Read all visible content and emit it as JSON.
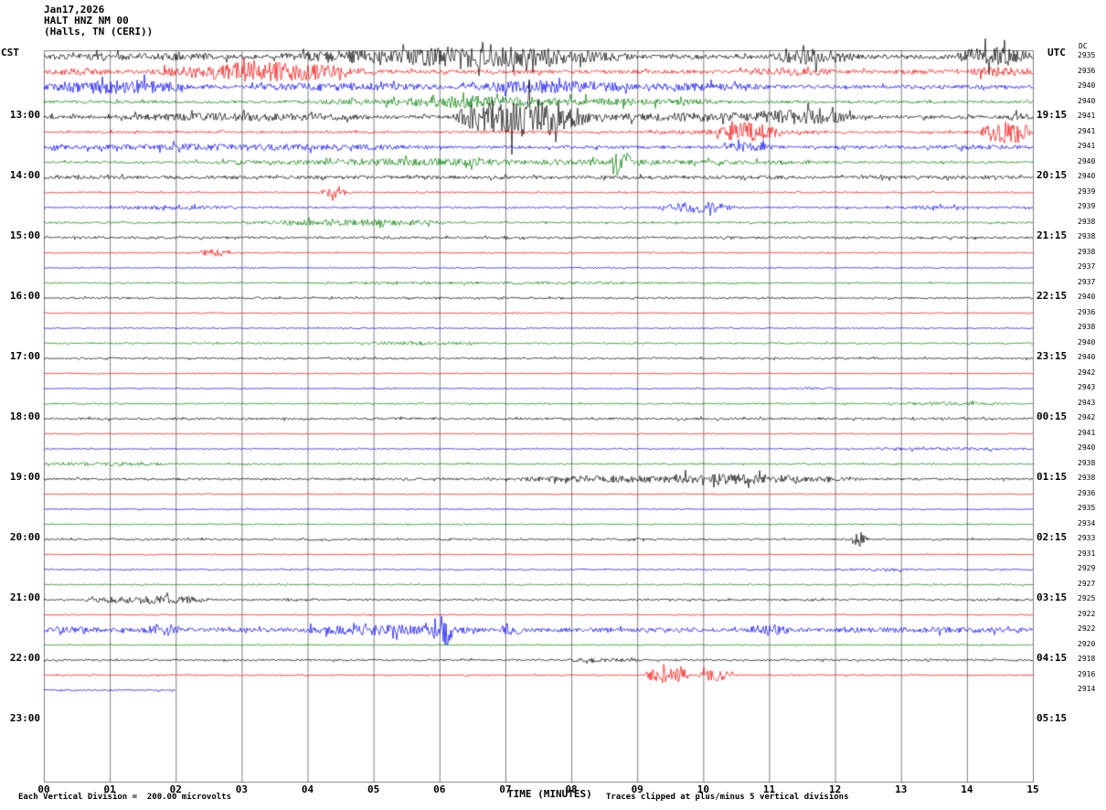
{
  "title": {
    "date": "Jan17,2026",
    "station": "HALT HNZ NM 00",
    "location": "(Halls, TN (CERI))"
  },
  "axes": {
    "left_label": "CST",
    "right_label": "UTC",
    "dc_label": "DC",
    "x_label": "TIME (MINUTES)",
    "x_ticks": [
      "00",
      "01",
      "02",
      "03",
      "04",
      "05",
      "06",
      "07",
      "08",
      "09",
      "10",
      "11",
      "12",
      "13",
      "14",
      "15"
    ],
    "footer_left": "Each Vertical Division =  200.00 microvolts",
    "footer_right": "Traces clipped at plus/minus 5 vertical divisions"
  },
  "chart_data": {
    "type": "line",
    "subtype": "helicorder-seismogram",
    "x_range": [
      0,
      15
    ],
    "minutes_per_line": 15,
    "microvolts_per_division": 200.0,
    "clip_divisions": 5,
    "colors": [
      "#000000",
      "#ff0000",
      "#0000ff",
      "#008000"
    ],
    "rows": [
      {
        "trace": true,
        "cst": "",
        "utc": "",
        "dc": 2935,
        "base": 2.5,
        "events": [
          [
            0,
            3,
            1.5
          ],
          [
            3.5,
            9,
            6
          ],
          [
            5.5,
            8,
            3
          ],
          [
            11,
            12.3,
            7
          ],
          [
            13.8,
            15,
            8
          ]
        ]
      },
      {
        "trace": true,
        "cst": "",
        "utc": "",
        "dc": 2936,
        "base": 2.0,
        "events": [
          [
            0,
            1,
            2
          ],
          [
            1.5,
            5,
            5
          ],
          [
            2.2,
            4.6,
            4
          ],
          [
            10.5,
            12,
            2.5
          ],
          [
            14,
            15,
            3.5
          ]
        ]
      },
      {
        "trace": true,
        "cst": "",
        "utc": "",
        "dc": 2940,
        "base": 2.0,
        "events": [
          [
            0,
            2.2,
            6
          ],
          [
            3,
            6,
            2.5
          ],
          [
            6.3,
            9,
            5
          ],
          [
            9,
            11,
            2.5
          ]
        ]
      },
      {
        "trace": true,
        "cst": "",
        "utc": "",
        "dc": 2940,
        "base": 1.5,
        "events": [
          [
            4,
            10.5,
            3
          ],
          [
            5.5,
            7.5,
            2.5
          ]
        ]
      },
      {
        "trace": true,
        "cst": "13:00",
        "utc": "19:15",
        "dc": 2941,
        "base": 2.0,
        "events": [
          [
            1,
            5,
            2.5
          ],
          [
            6.2,
            8.3,
            20
          ],
          [
            8.3,
            12.3,
            3
          ],
          [
            10.8,
            12.3,
            4
          ],
          [
            14.6,
            15,
            2.5
          ]
        ]
      },
      {
        "trace": true,
        "cst": "",
        "utc": "",
        "dc": 2941,
        "base": 1.2,
        "events": [
          [
            9,
            12,
            1.5
          ],
          [
            10.2,
            11.2,
            8
          ],
          [
            14.2,
            15,
            12
          ]
        ]
      },
      {
        "trace": true,
        "cst": "",
        "utc": "",
        "dc": 2941,
        "base": 1.5,
        "events": [
          [
            0,
            6,
            2
          ],
          [
            10.3,
            11.1,
            4
          ],
          [
            13,
            15,
            1
          ]
        ]
      },
      {
        "trace": true,
        "cst": "",
        "utc": "",
        "dc": 2940,
        "base": 1.2,
        "events": [
          [
            2,
            12,
            2
          ],
          [
            4.5,
            7,
            1.2
          ],
          [
            8.6,
            8.9,
            13
          ]
        ]
      },
      {
        "trace": true,
        "cst": "14:00",
        "utc": "20:15",
        "dc": 2940,
        "base": 1.8,
        "events": []
      },
      {
        "trace": true,
        "cst": "",
        "utc": "",
        "dc": 2939,
        "base": 0.8,
        "events": [
          [
            4.15,
            4.6,
            6
          ]
        ]
      },
      {
        "trace": true,
        "cst": "",
        "utc": "",
        "dc": 2939,
        "base": 1.0,
        "events": [
          [
            1,
            3,
            1.3
          ],
          [
            9.3,
            10.5,
            5
          ],
          [
            13,
            14,
            1
          ]
        ]
      },
      {
        "trace": true,
        "cst": "",
        "utc": "",
        "dc": 2938,
        "base": 1.0,
        "events": [
          [
            3.2,
            6.2,
            2.5
          ]
        ]
      },
      {
        "trace": true,
        "cst": "15:00",
        "utc": "21:15",
        "dc": 2938,
        "base": 1.2,
        "events": []
      },
      {
        "trace": true,
        "cst": "",
        "utc": "",
        "dc": 2938,
        "base": 0.7,
        "events": [
          [
            2.35,
            2.85,
            3.5
          ]
        ]
      },
      {
        "trace": true,
        "cst": "",
        "utc": "",
        "dc": 2937,
        "base": 0.6,
        "events": []
      },
      {
        "trace": true,
        "cst": "",
        "utc": "",
        "dc": 2937,
        "base": 0.8,
        "events": [
          [
            4,
            10,
            0.7
          ]
        ]
      },
      {
        "trace": true,
        "cst": "16:00",
        "utc": "22:15",
        "dc": 2940,
        "base": 1.0,
        "events": []
      },
      {
        "trace": true,
        "cst": "",
        "utc": "",
        "dc": 2936,
        "base": 0.6,
        "events": []
      },
      {
        "trace": true,
        "cst": "",
        "utc": "",
        "dc": 2938,
        "base": 0.6,
        "events": []
      },
      {
        "trace": true,
        "cst": "",
        "utc": "",
        "dc": 2940,
        "base": 0.8,
        "events": [
          [
            4.8,
            6.6,
            1.2
          ]
        ]
      },
      {
        "trace": true,
        "cst": "17:00",
        "utc": "23:15",
        "dc": 2940,
        "base": 1.0,
        "events": []
      },
      {
        "trace": true,
        "cst": "",
        "utc": "",
        "dc": 2942,
        "base": 0.6,
        "events": []
      },
      {
        "trace": true,
        "cst": "",
        "utc": "",
        "dc": 2943,
        "base": 0.6,
        "events": [
          [
            11.3,
            12.2,
            1
          ]
        ]
      },
      {
        "trace": true,
        "cst": "",
        "utc": "",
        "dc": 2943,
        "base": 0.8,
        "events": [
          [
            12.8,
            14.6,
            1.2
          ]
        ]
      },
      {
        "trace": true,
        "cst": "18:00",
        "utc": "00:15",
        "dc": 2942,
        "base": 1.2,
        "events": []
      },
      {
        "trace": true,
        "cst": "",
        "utc": "",
        "dc": 2941,
        "base": 0.6,
        "events": []
      },
      {
        "trace": true,
        "cst": "",
        "utc": "",
        "dc": 2940,
        "base": 0.7,
        "events": [
          [
            12.5,
            15,
            1
          ]
        ]
      },
      {
        "trace": true,
        "cst": "",
        "utc": "",
        "dc": 2938,
        "base": 0.8,
        "events": [
          [
            0,
            2,
            1.3
          ]
        ]
      },
      {
        "trace": true,
        "cst": "19:00",
        "utc": "01:15",
        "dc": 2938,
        "base": 1.2,
        "events": [
          [
            7,
            12.5,
            3
          ],
          [
            9.5,
            11.5,
            1.5
          ]
        ]
      },
      {
        "trace": true,
        "cst": "",
        "utc": "",
        "dc": 2936,
        "base": 0.6,
        "events": []
      },
      {
        "trace": true,
        "cst": "",
        "utc": "",
        "dc": 2935,
        "base": 0.6,
        "events": []
      },
      {
        "trace": true,
        "cst": "",
        "utc": "",
        "dc": 2934,
        "base": 0.7,
        "events": []
      },
      {
        "trace": true,
        "cst": "20:00",
        "utc": "02:15",
        "dc": 2933,
        "base": 1.0,
        "events": [
          [
            12.25,
            12.5,
            9
          ]
        ]
      },
      {
        "trace": true,
        "cst": "",
        "utc": "",
        "dc": 2931,
        "base": 0.6,
        "events": []
      },
      {
        "trace": true,
        "cst": "",
        "utc": "",
        "dc": 2929,
        "base": 0.7,
        "events": [
          [
            12,
            13.2,
            1.1
          ]
        ]
      },
      {
        "trace": true,
        "cst": "",
        "utc": "",
        "dc": 2927,
        "base": 0.7,
        "events": []
      },
      {
        "trace": true,
        "cst": "21:00",
        "utc": "03:15",
        "dc": 2925,
        "base": 1.0,
        "events": [
          [
            0.6,
            2.6,
            3.5
          ]
        ]
      },
      {
        "trace": true,
        "cst": "",
        "utc": "",
        "dc": 2922,
        "base": 0.6,
        "events": []
      },
      {
        "trace": true,
        "cst": "",
        "utc": "",
        "dc": 2922,
        "base": 2.2,
        "events": [
          [
            0,
            1,
            1.5
          ],
          [
            1.5,
            2.1,
            4.5
          ],
          [
            3.8,
            6.6,
            3.5
          ],
          [
            5.9,
            6.2,
            15
          ],
          [
            6.9,
            7.3,
            4
          ],
          [
            10.7,
            11.3,
            5
          ],
          [
            12,
            15,
            1
          ]
        ]
      },
      {
        "trace": true,
        "cst": "",
        "utc": "",
        "dc": 2920,
        "base": 0.7,
        "events": []
      },
      {
        "trace": true,
        "cst": "22:00",
        "utc": "04:15",
        "dc": 2918,
        "base": 1.0,
        "events": [
          [
            7.8,
            9,
            1.3
          ]
        ]
      },
      {
        "trace": true,
        "cst": "",
        "utc": "",
        "dc": 2916,
        "base": 0.8,
        "events": [
          [
            9.1,
            9.8,
            8
          ],
          [
            9.9,
            10.45,
            6
          ]
        ]
      },
      {
        "trace": true,
        "cst": "",
        "utc": "",
        "dc": 2914,
        "base": 0.9,
        "events": [],
        "end": 2.0
      },
      {
        "trace": false,
        "cst": "",
        "utc": "",
        "dc": null
      },
      {
        "trace": false,
        "cst": "23:00",
        "utc": "05:15",
        "dc": null
      }
    ]
  }
}
